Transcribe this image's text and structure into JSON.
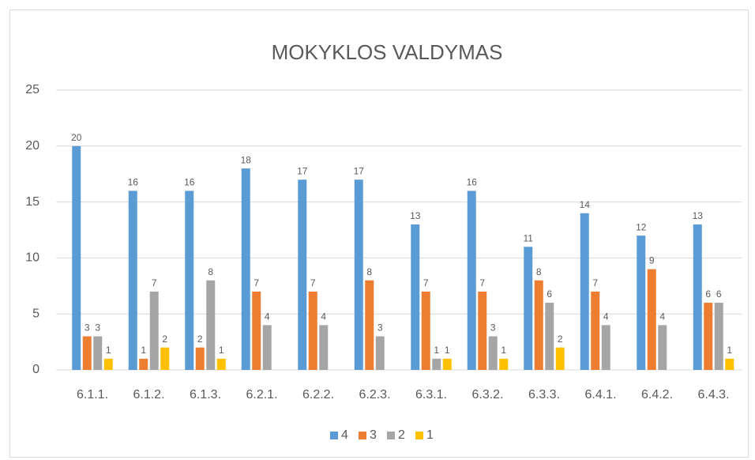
{
  "chart_data": {
    "type": "bar",
    "title": "MOKYKLOS VALDYMAS",
    "categories": [
      "6.1.1.",
      "6.1.2.",
      "6.1.3.",
      "6.2.1.",
      "6.2.2.",
      "6.2.3.",
      "6.3.1.",
      "6.3.2.",
      "6.3.3.",
      "6.4.1.",
      "6.4.2.",
      "6.4.3."
    ],
    "series": [
      {
        "name": "4",
        "color": "#5b9bd5",
        "values": [
          20,
          16,
          16,
          18,
          17,
          17,
          13,
          16,
          11,
          14,
          12,
          13
        ]
      },
      {
        "name": "3",
        "color": "#ed7d31",
        "values": [
          3,
          1,
          2,
          7,
          7,
          8,
          7,
          7,
          8,
          7,
          9,
          6
        ]
      },
      {
        "name": "2",
        "color": "#a5a5a5",
        "values": [
          3,
          7,
          8,
          4,
          4,
          3,
          1,
          3,
          6,
          4,
          4,
          6
        ]
      },
      {
        "name": "1",
        "color": "#ffc000",
        "values": [
          1,
          2,
          1,
          null,
          null,
          null,
          1,
          1,
          2,
          null,
          null,
          1
        ]
      }
    ],
    "ylim": [
      0,
      25
    ],
    "yticks": [
      0,
      5,
      10,
      15,
      20,
      25
    ],
    "grid": true,
    "legend": "bottom"
  }
}
